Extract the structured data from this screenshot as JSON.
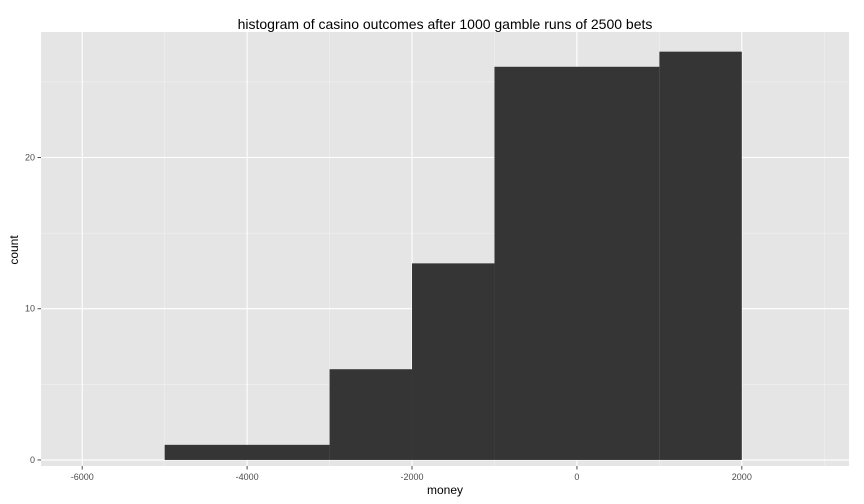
{
  "chart_data": {
    "type": "bar",
    "title": "histogram of casino outcomes after 1000 gamble runs of 2500 bets",
    "xlabel": "money",
    "ylabel": "count",
    "xlim": [
      -6500,
      3300
    ],
    "ylim": [
      -0.4,
      28.3
    ],
    "x_ticks": [
      -6000,
      -4000,
      -2000,
      0,
      2000
    ],
    "x_tick_labels": [
      "-6000",
      "-4000",
      "-2000",
      "0",
      "2000"
    ],
    "y_ticks": [
      0,
      10,
      20
    ],
    "y_tick_labels": [
      "0",
      "10",
      "20"
    ],
    "bins": [
      {
        "start": -5000,
        "end": -3000,
        "count": 1
      },
      {
        "start": -3000,
        "end": -2000,
        "count": 6
      },
      {
        "start": -2000,
        "end": -1000,
        "count": 13
      },
      {
        "start": -1000,
        "end": 1000,
        "count": 26
      },
      {
        "start": 1000,
        "end": 2000,
        "count": 27
      }
    ],
    "bar_color": "#353535",
    "panel_background": "#e5e5e5",
    "grid_color": "#ffffff",
    "grid": true,
    "legend": "none"
  }
}
